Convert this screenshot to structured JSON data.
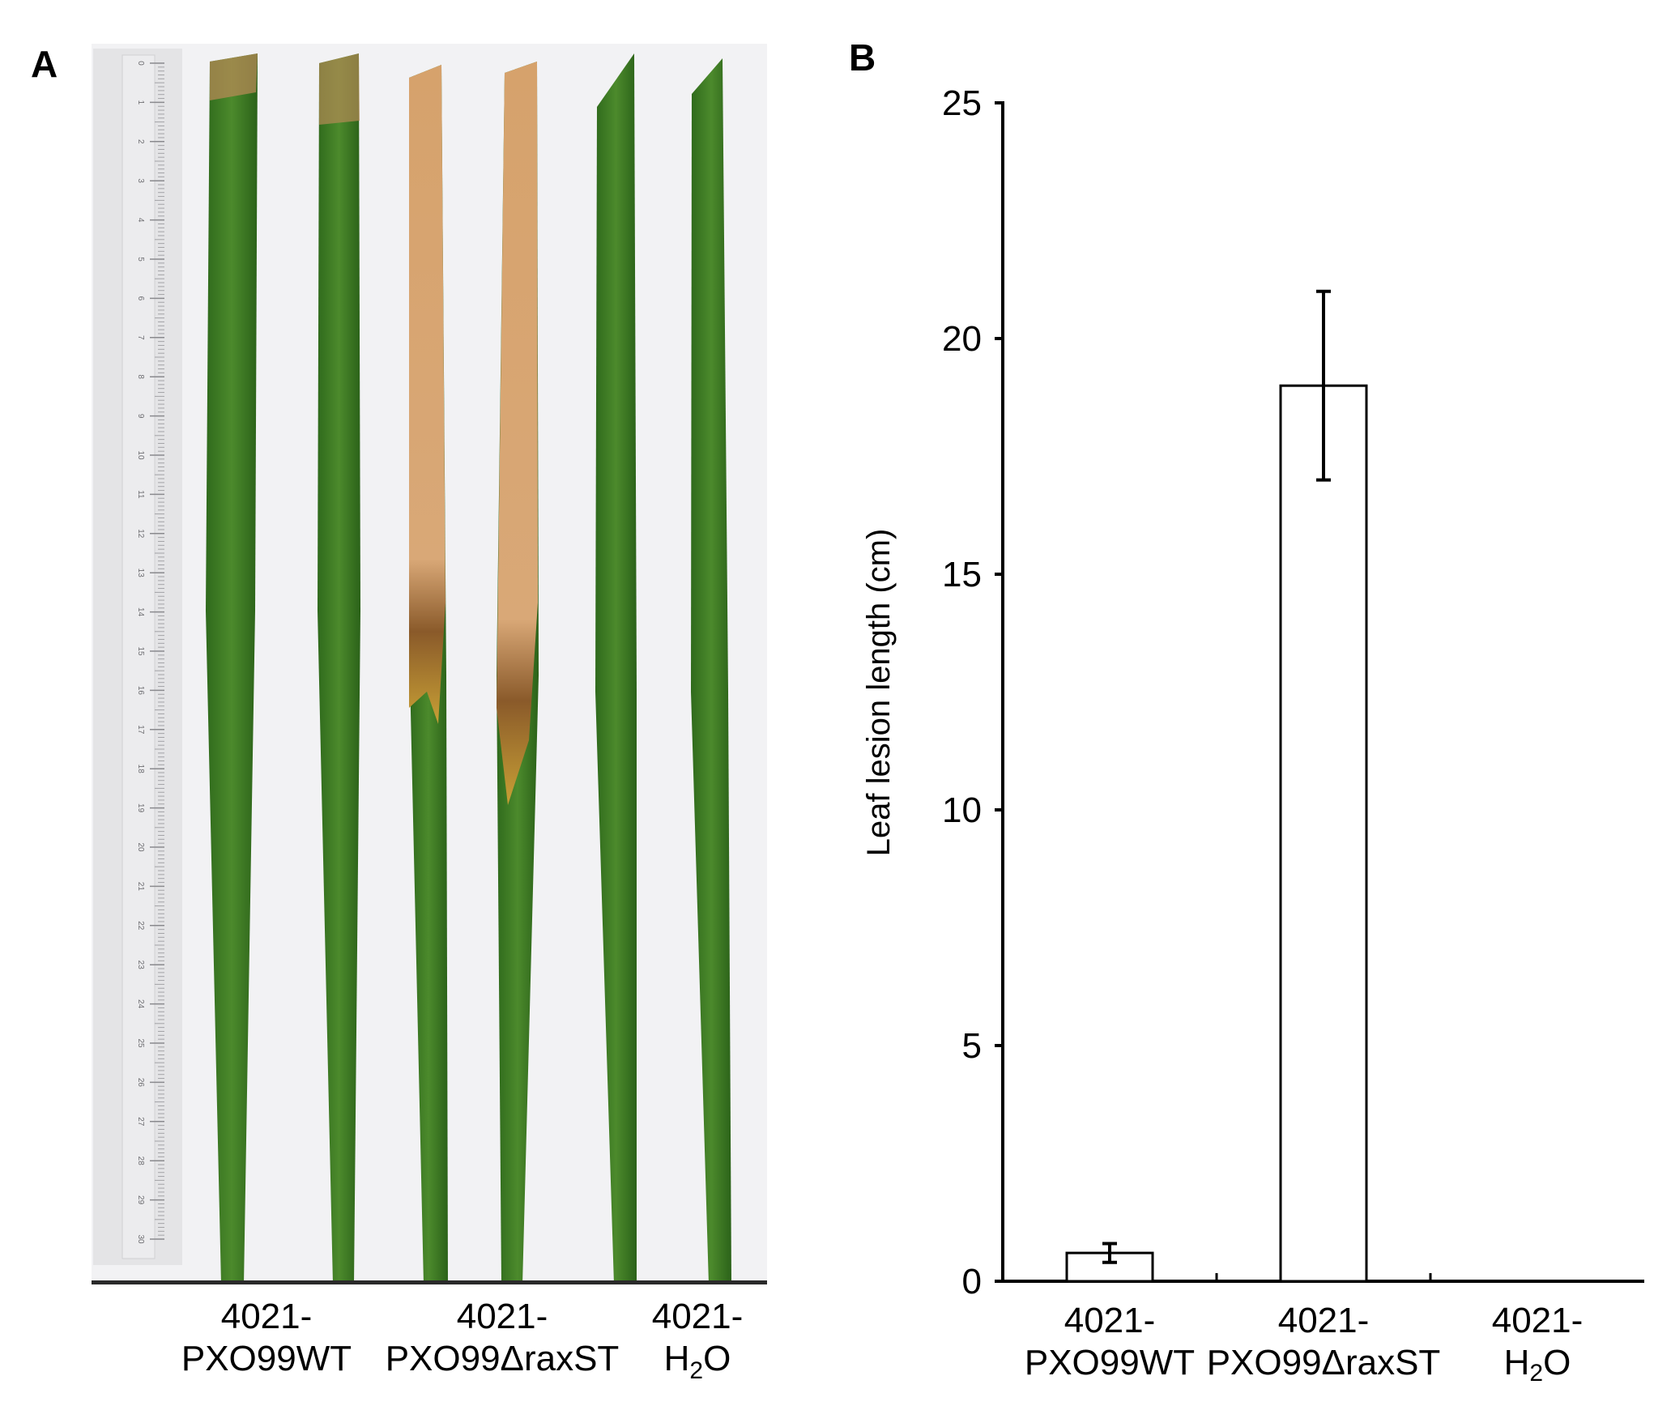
{
  "panels": {
    "a": "A",
    "b": "B"
  },
  "photo": {
    "labels": [
      {
        "line1": "4021-",
        "line2": "PXO99WT"
      },
      {
        "line1": "4021-",
        "line2": "PXO99ΔraxST"
      },
      {
        "line1": "4021-",
        "line2_main": "H",
        "line2_sub": "2",
        "line2_end": "O"
      }
    ],
    "ruler_ticks": [
      "0",
      "1",
      "2",
      "3",
      "4",
      "5",
      "6",
      "7",
      "8",
      "9",
      "10",
      "11",
      "12",
      "13",
      "14",
      "15",
      "16",
      "17",
      "18",
      "19",
      "20",
      "21",
      "22",
      "23",
      "24",
      "25",
      "26",
      "27",
      "28",
      "29",
      "30"
    ]
  },
  "chart_data": {
    "type": "bar",
    "ylabel": "Leaf lesion length (cm)",
    "ylim": [
      0,
      25
    ],
    "yticks": [
      0,
      5,
      10,
      15,
      20,
      25
    ],
    "categories": [
      {
        "line1": "4021-",
        "line2": "PXO99WT"
      },
      {
        "line1": "4021-",
        "line2": "PXO99ΔraxST"
      },
      {
        "line1": "4021-",
        "line2_main": "H",
        "line2_sub": "2",
        "line2_end": "O"
      }
    ],
    "values": [
      0.6,
      19.0,
      0.0
    ],
    "errors": [
      0.2,
      2.0,
      0.0
    ],
    "bar_fill": "#ffffff",
    "bar_stroke": "#000000",
    "grid": false
  }
}
